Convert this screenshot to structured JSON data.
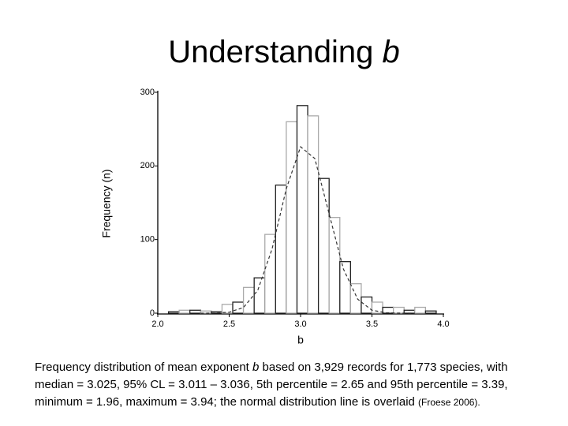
{
  "header": {
    "title": "Understanding",
    "title_symbol": "b"
  },
  "chart_data": {
    "type": "histogram",
    "xlabel": "b",
    "ylabel": "Frequency (n)",
    "bins": [
      2.075,
      2.15,
      2.225,
      2.3,
      2.375,
      2.45,
      2.525,
      2.6,
      2.675,
      2.75,
      2.825,
      2.9,
      2.975,
      3.05,
      3.125,
      3.2,
      3.275,
      3.35,
      3.425,
      3.5,
      3.575,
      3.65,
      3.725,
      3.8,
      3.875,
      3.95
    ],
    "values": [
      2,
      4,
      4,
      3,
      2,
      12,
      15,
      35,
      48,
      107,
      174,
      260,
      282,
      268,
      183,
      130,
      70,
      40,
      22,
      15,
      8,
      8,
      4,
      8,
      3
    ],
    "colors": [
      "#222222",
      "#aaaaaa"
    ],
    "normal_curve": {
      "color": "#333333",
      "x": [
        2.3,
        2.4,
        2.5,
        2.6,
        2.7,
        2.8,
        2.9,
        3.0,
        3.1,
        3.2,
        3.3,
        3.4,
        3.5,
        3.6,
        3.7,
        3.8
      ],
      "y": [
        0,
        0.2,
        1.3,
        7.7,
        31,
        87,
        169,
        226,
        210,
        135,
        60,
        19,
        4,
        0.6,
        0.1,
        0
      ]
    },
    "xlim": [
      2.0,
      4.0
    ],
    "xticks": [
      {
        "value": 2,
        "label": "2.0"
      },
      {
        "value": 2.5,
        "label": "2.5"
      },
      {
        "value": 3,
        "label": "3.0"
      },
      {
        "value": 3.5,
        "label": "3.5"
      },
      {
        "value": 4,
        "label": "4.0"
      }
    ],
    "ylim": [
      0,
      300
    ],
    "yticks": [
      0,
      100,
      200,
      300
    ]
  },
  "caption": {
    "text1": "Frequency distribution of mean exponent ",
    "symbol": "b",
    "text2": " based on 3,929 records for 1,773 species, with median = 3.025, 95% CL = 3.011 – 3.036, 5th percentile = 2.65 and 95th percentile = 3.39, minimum = 1.96, maximum = 3.94; the normal distribution line is overlaid ",
    "source": "(Froese 2006)."
  }
}
